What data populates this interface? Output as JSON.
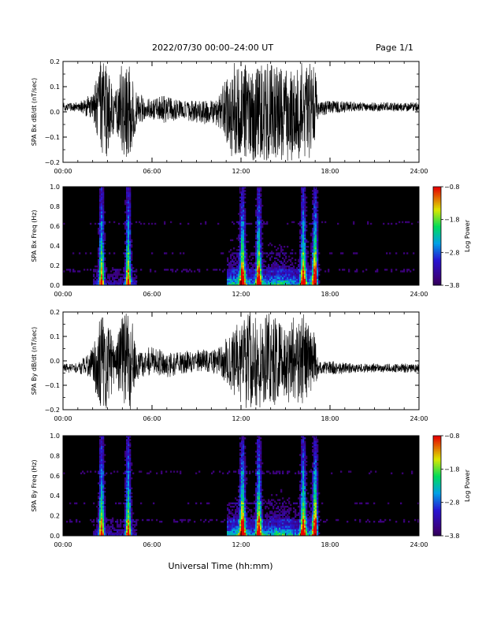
{
  "header": {
    "title": "2022/07/30  00:00–24:00 UT",
    "page": "Page 1/1"
  },
  "xaxis": {
    "label": "Universal Time (hh:mm)",
    "ticks": [
      "00:00",
      "06:00",
      "12:00",
      "18:00",
      "24:00"
    ],
    "range_hours": [
      0,
      24
    ]
  },
  "colors": {
    "waveform": "#000000",
    "background": "#ffffff",
    "spectrogram_bg": "#000000"
  },
  "chart_data": [
    {
      "type": "line",
      "ylabel": "SPA Bx dB/dt (nT/sec)",
      "yticks": [
        "−0.2",
        "−0.1",
        "0.0",
        "0.1",
        "0.2"
      ],
      "ylim": [
        -0.2,
        0.2
      ],
      "x_hours": [
        0,
        1,
        1.5,
        2,
        2.5,
        3,
        3.5,
        4,
        4.5,
        5,
        6,
        7,
        8,
        9,
        10,
        10.5,
        11,
        11.5,
        12,
        13,
        14,
        15,
        16,
        16.5,
        17,
        17.2,
        18,
        20,
        22,
        24
      ],
      "amplitude": [
        0.02,
        0.02,
        0.04,
        0.05,
        0.22,
        0.22,
        0.06,
        0.22,
        0.2,
        0.06,
        0.05,
        0.06,
        0.04,
        0.05,
        0.05,
        0.07,
        0.15,
        0.22,
        0.22,
        0.22,
        0.22,
        0.2,
        0.22,
        0.22,
        0.2,
        0.03,
        0.03,
        0.02,
        0.02,
        0.02
      ],
      "baseline": [
        0.02,
        0.02,
        0.02,
        0.02,
        0.0,
        0.0,
        0.01,
        0.0,
        0.0,
        0.01,
        0.01,
        0.01,
        0.01,
        0.0,
        0.0,
        0.0,
        0.0,
        0.0,
        0.0,
        0.0,
        0.0,
        0.0,
        0.0,
        0.0,
        0.0,
        0.01,
        0.02,
        0.02,
        0.02,
        0.02
      ]
    },
    {
      "type": "heatmap",
      "ylabel": "SPA Bx Freq (Hz)",
      "yticks": [
        "0.0",
        "0.2",
        "0.4",
        "0.6",
        "0.8",
        "1.0"
      ],
      "ylim": [
        0,
        1.0
      ],
      "colorbar": {
        "label": "Log Power",
        "ticks": [
          "−0.8",
          "−1.8",
          "−2.8",
          "−3.8"
        ],
        "range": [
          -3.8,
          -0.8
        ]
      },
      "bursts_hours": [
        2.6,
        4.4,
        12.1,
        13.2,
        16.2,
        17.0
      ],
      "active_interval_hours": [
        11.0,
        17.1
      ]
    },
    {
      "type": "line",
      "ylabel": "SPA By dB/dt (nT/sec)",
      "yticks": [
        "−0.2",
        "−0.1",
        "0.0",
        "0.1",
        "0.2"
      ],
      "ylim": [
        -0.2,
        0.2
      ],
      "x_hours": [
        0,
        1,
        1.5,
        2,
        2.5,
        3,
        3.5,
        4,
        4.5,
        5,
        6,
        7,
        8,
        9,
        10,
        10.5,
        11,
        11.5,
        12,
        13,
        14,
        15,
        16,
        16.5,
        17,
        17.2,
        18,
        20,
        22,
        24
      ],
      "amplitude": [
        0.02,
        0.02,
        0.05,
        0.08,
        0.22,
        0.22,
        0.06,
        0.22,
        0.22,
        0.07,
        0.06,
        0.06,
        0.05,
        0.05,
        0.05,
        0.06,
        0.1,
        0.15,
        0.22,
        0.22,
        0.2,
        0.18,
        0.2,
        0.2,
        0.12,
        0.03,
        0.03,
        0.02,
        0.02,
        0.02
      ],
      "baseline": [
        -0.03,
        -0.03,
        -0.02,
        -0.02,
        0.0,
        0.0,
        -0.01,
        0.0,
        0.0,
        -0.01,
        0.0,
        -0.01,
        -0.01,
        0.0,
        0.0,
        0.0,
        0.0,
        0.0,
        0.0,
        0.0,
        0.0,
        0.0,
        0.0,
        0.0,
        0.0,
        -0.03,
        -0.03,
        -0.03,
        -0.03,
        -0.03
      ]
    },
    {
      "type": "heatmap",
      "ylabel": "SPA By Freq (Hz)",
      "yticks": [
        "0.0",
        "0.2",
        "0.4",
        "0.6",
        "0.8",
        "1.0"
      ],
      "ylim": [
        0,
        1.0
      ],
      "colorbar": {
        "label": "Log Power",
        "ticks": [
          "−0.8",
          "−1.8",
          "−2.8",
          "−3.8"
        ],
        "range": [
          -3.8,
          -0.8
        ]
      },
      "bursts_hours": [
        2.6,
        4.4,
        12.1,
        13.2,
        16.2,
        17.0
      ],
      "active_interval_hours": [
        11.0,
        17.1
      ]
    }
  ]
}
